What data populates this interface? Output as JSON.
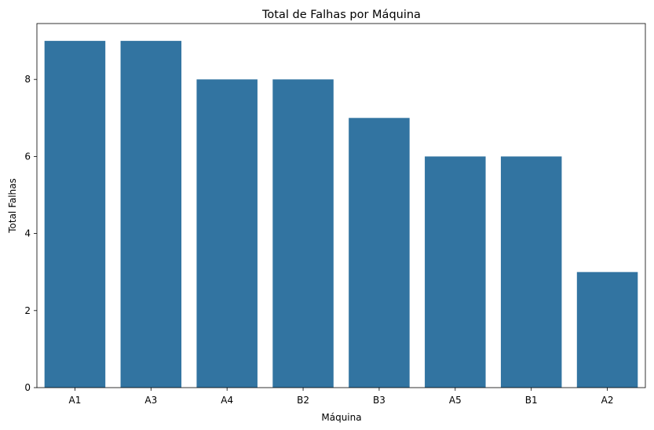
{
  "chart_data": {
    "type": "bar",
    "title": "Total de Falhas por Máquina",
    "xlabel": "Máquina",
    "ylabel": "Total Falhas",
    "categories": [
      "A1",
      "A3",
      "A4",
      "B2",
      "B3",
      "A5",
      "B1",
      "A2"
    ],
    "values": [
      9,
      9,
      8,
      8,
      7,
      6,
      6,
      3
    ],
    "ylim": [
      0,
      9.45
    ],
    "yticks": [
      0,
      2,
      4,
      6,
      8
    ],
    "grid": false,
    "bar_color": "#3274a1"
  }
}
